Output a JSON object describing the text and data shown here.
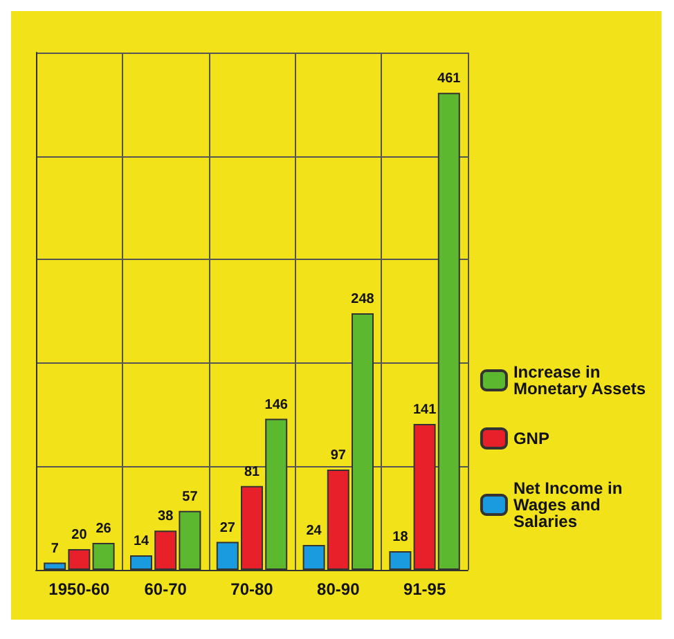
{
  "chart_data": {
    "type": "bar",
    "categories": [
      "1950-60",
      "60-70",
      "70-80",
      "80-90",
      "91-95"
    ],
    "series": [
      {
        "name": "Net Income in Wages and Salaries",
        "color": "#1a9be0",
        "values": [
          7,
          14,
          27,
          24,
          18
        ]
      },
      {
        "name": "GNP",
        "color": "#e8202a",
        "values": [
          20,
          38,
          81,
          97,
          141
        ]
      },
      {
        "name": "Increase in Monetary Assets",
        "color": "#5cb82e",
        "values": [
          26,
          57,
          146,
          248,
          461
        ]
      }
    ],
    "data_labels": true,
    "grid": true,
    "legend": "right"
  }
}
